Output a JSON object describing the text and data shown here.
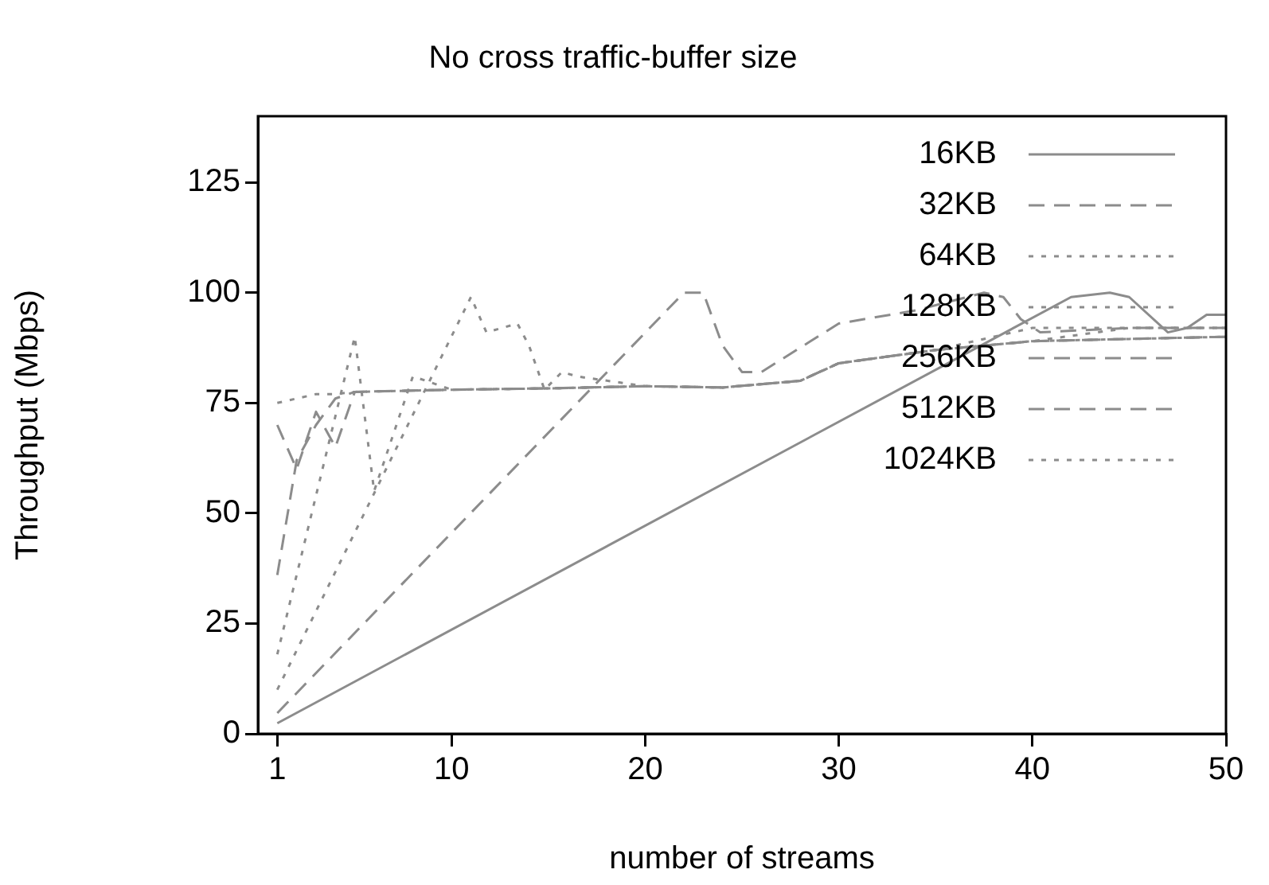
{
  "chart_data": {
    "type": "line",
    "title": "No cross traffic-buffer size",
    "xlabel": "number of streams",
    "ylabel": "Throughput (Mbps)",
    "xlim": [
      0,
      50
    ],
    "xticks": [
      1,
      10,
      20,
      30,
      40,
      50
    ],
    "ylim": [
      0,
      140
    ],
    "yticks": [
      0,
      25,
      50,
      75,
      100,
      125
    ],
    "grid": false,
    "legend": "top right",
    "marker": "none",
    "series": [
      {
        "name": "16KB",
        "color": "#8c8c8c",
        "line_style": "solid",
        "x": [
          1,
          42,
          44,
          45,
          47,
          48,
          49,
          50
        ],
        "values": [
          2.4,
          99,
          100,
          99,
          91,
          92,
          95,
          95
        ]
      },
      {
        "name": "32KB",
        "color": "#8c8c8c",
        "line_style": "dashed",
        "x": [
          1,
          22,
          23,
          24,
          25,
          26,
          30,
          34,
          37.5,
          38.5,
          39.4,
          40.4,
          45,
          50
        ],
        "values": [
          4.7,
          100,
          100,
          88,
          82,
          82,
          93,
          96,
          100,
          99,
          94,
          91,
          92,
          92
        ]
      },
      {
        "name": "64KB",
        "color": "#8c8c8c",
        "line_style": "dotted",
        "x": [
          1,
          11,
          11.8,
          13.4,
          14,
          14.8,
          15.7,
          16.5,
          20,
          24,
          28,
          30,
          35,
          40,
          45,
          50
        ],
        "values": [
          10,
          99,
          91,
          93,
          88,
          78,
          82,
          81,
          78.8,
          78.5,
          80,
          84,
          87,
          92,
          92,
          92
        ]
      },
      {
        "name": "128KB",
        "color": "#8c8c8c",
        "line_style": "dotted",
        "x": [
          1,
          5,
          6,
          8,
          8.7,
          10,
          15,
          20,
          24,
          28,
          30,
          35,
          40,
          45,
          50
        ],
        "values": [
          18,
          90,
          55,
          81,
          80,
          78,
          78.3,
          78.8,
          78.5,
          80,
          84,
          87,
          89,
          89.5,
          90
        ]
      },
      {
        "name": "256KB",
        "color": "#8c8c8c",
        "line_style": "dashed",
        "x": [
          1,
          2,
          3,
          4,
          5,
          10,
          15,
          20,
          24,
          28,
          30,
          35,
          40,
          45,
          50
        ],
        "values": [
          36,
          62,
          70,
          76,
          77.5,
          78,
          78.3,
          78.8,
          78.5,
          80,
          84,
          87,
          89,
          89.5,
          90
        ]
      },
      {
        "name": "512KB",
        "color": "#8c8c8c",
        "line_style": "dashed",
        "x": [
          1,
          2,
          3,
          4,
          5,
          10,
          15,
          20,
          24,
          28,
          30,
          35,
          40,
          45,
          50
        ],
        "values": [
          70,
          60,
          73,
          65,
          77.5,
          78,
          78.3,
          78.8,
          78.5,
          80,
          84,
          87,
          89,
          89.5,
          90
        ]
      },
      {
        "name": "1024KB",
        "color": "#8c8c8c",
        "line_style": "dotted",
        "x": [
          1,
          2,
          3,
          4,
          5,
          10,
          15,
          20,
          24,
          28,
          30,
          35,
          40,
          45,
          50
        ],
        "values": [
          75,
          76,
          77,
          77,
          77.5,
          78,
          78.3,
          78.8,
          78.5,
          80,
          84,
          87,
          89,
          92,
          92
        ]
      }
    ]
  }
}
